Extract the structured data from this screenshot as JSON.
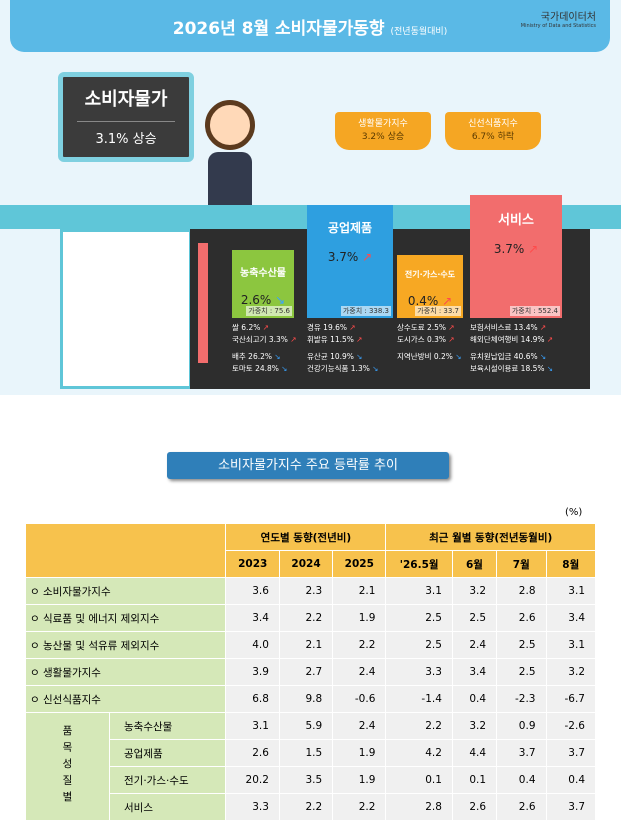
{
  "header": {
    "title": "2026년 8월 소비자물가동향",
    "subtitle": "(전년동월대비)",
    "logo": "국가데이터처",
    "logo_en": "Ministry of Data and Statistics"
  },
  "cpi": {
    "label": "소비자물가",
    "value": "3.1% 상승"
  },
  "baskets": [
    {
      "label": "생활물가지수",
      "value": "3.2% 상승"
    },
    {
      "label": "신선식품지수",
      "value": "6.7% 하락"
    }
  ],
  "sectors": [
    {
      "name": "농축수산물",
      "change": "2.6%",
      "trend": "down",
      "weight": "가중치 : 75.6",
      "color": "#8cc63f",
      "items": [
        {
          "text": "쌀 6.2%",
          "trend": "up"
        },
        {
          "text": "국산쇠고기 3.3%",
          "trend": "up"
        },
        {
          "text": "배추 26.2%",
          "trend": "down"
        },
        {
          "text": "토마토 24.8%",
          "trend": "down"
        }
      ]
    },
    {
      "name": "공업제품",
      "change": "3.7%",
      "trend": "up",
      "weight": "가중치 : 338.3",
      "color": "#2e9fe0",
      "items": [
        {
          "text": "경유 19.6%",
          "trend": "up"
        },
        {
          "text": "휘발유 11.5%",
          "trend": "up"
        },
        {
          "text": "유산균 10.9%",
          "trend": "down"
        },
        {
          "text": "건강기능식품 1.3%",
          "trend": "down"
        }
      ]
    },
    {
      "name": "전기·가스·수도",
      "change": "0.4%",
      "trend": "up",
      "weight": "가중치 : 33.7",
      "color": "#f7a823",
      "items": [
        {
          "text": "상수도료 2.5%",
          "trend": "up"
        },
        {
          "text": "도시가스 0.3%",
          "trend": "up"
        },
        {
          "text": "지역난방비 0.2%",
          "trend": "down"
        }
      ]
    },
    {
      "name": "서비스",
      "change": "3.7%",
      "trend": "up",
      "weight": "가중치 : 552.4",
      "color": "#f26d6d",
      "items": [
        {
          "text": "보험서비스료 13.4%",
          "trend": "up"
        },
        {
          "text": "해외단체여행비 14.9%",
          "trend": "up"
        },
        {
          "text": "유치원납입금 40.6%",
          "trend": "down"
        },
        {
          "text": "보육시설이용료 18.5%",
          "trend": "down"
        }
      ]
    }
  ],
  "section_title": "소비자물가지수 주요 등락률 추이",
  "unit": "(%)",
  "table": {
    "groups": [
      "연도별 동향(전년비)",
      "최근 월별 동향(전년동월비)"
    ],
    "columns": [
      "2023",
      "2024",
      "2025",
      "'26.5월",
      "6월",
      "7월",
      "8월"
    ],
    "rows": [
      [
        "소비자물가지수",
        "3.6",
        "2.3",
        "2.1",
        "3.1",
        "3.2",
        "2.8",
        "3.1"
      ],
      [
        "식료품 및 에너지 제외지수",
        "3.4",
        "2.2",
        "1.9",
        "2.5",
        "2.5",
        "2.6",
        "3.4"
      ],
      [
        "농산물 및 석유류 제외지수",
        "4.0",
        "2.1",
        "2.2",
        "2.5",
        "2.4",
        "2.5",
        "3.1"
      ],
      [
        "생활물가지수",
        "3.9",
        "2.7",
        "2.4",
        "3.3",
        "3.4",
        "2.5",
        "3.2"
      ],
      [
        "신선식품지수",
        "6.8",
        "9.8",
        "-0.6",
        "-1.4",
        "0.4",
        "-2.3",
        "-6.7"
      ]
    ],
    "group_label": "품목성질별",
    "group_rows": [
      [
        "농축수산물",
        "3.1",
        "5.9",
        "2.4",
        "2.2",
        "3.2",
        "0.9",
        "-2.6"
      ],
      [
        "공업제품",
        "2.6",
        "1.5",
        "1.9",
        "4.2",
        "4.4",
        "3.7",
        "3.7"
      ],
      [
        "전기·가스·수도",
        "20.2",
        "3.5",
        "1.9",
        "0.1",
        "0.1",
        "0.4",
        "0.4"
      ],
      [
        "서비스",
        "3.3",
        "2.2",
        "2.2",
        "2.8",
        "2.6",
        "2.6",
        "3.7"
      ]
    ]
  }
}
